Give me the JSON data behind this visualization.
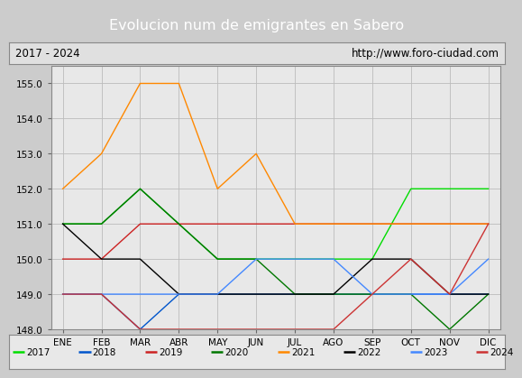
{
  "title": "Evolucion num de emigrantes en Sabero",
  "title_bg": "#4a8fd4",
  "subtitle_left": "2017 - 2024",
  "subtitle_right": "http://www.foro-ciudad.com",
  "months": [
    "ENE",
    "FEB",
    "MAR",
    "ABR",
    "MAY",
    "JUN",
    "JUL",
    "AGO",
    "SEP",
    "OCT",
    "NOV",
    "DIC"
  ],
  "ylim": [
    148.0,
    155.5
  ],
  "yticks": [
    148.0,
    149.0,
    150.0,
    151.0,
    152.0,
    153.0,
    154.0,
    155.0
  ],
  "series": {
    "2017": {
      "color": "#00dd00",
      "data": [
        151,
        151,
        152,
        151,
        150,
        150,
        150,
        150,
        150,
        152,
        152,
        152
      ]
    },
    "2018": {
      "color": "#0055cc",
      "data": [
        149,
        149,
        148,
        149,
        149,
        149,
        149,
        149,
        149,
        149,
        149,
        149
      ]
    },
    "2019": {
      "color": "#cc2222",
      "data": [
        150,
        150,
        151,
        151,
        151,
        151,
        151,
        151,
        151,
        151,
        151,
        151
      ]
    },
    "2020": {
      "color": "#007700",
      "data": [
        151,
        151,
        152,
        151,
        150,
        150,
        149,
        149,
        149,
        149,
        148,
        149
      ]
    },
    "2021": {
      "color": "#ff8800",
      "data": [
        152,
        153,
        155,
        155,
        152,
        153,
        151,
        151,
        151,
        151,
        151,
        151
      ]
    },
    "2022": {
      "color": "#000000",
      "data": [
        151,
        150,
        150,
        149,
        149,
        149,
        149,
        149,
        150,
        150,
        149,
        149
      ]
    },
    "2023": {
      "color": "#4488ff",
      "data": [
        149,
        149,
        149,
        149,
        149,
        150,
        150,
        150,
        149,
        149,
        149,
        150
      ]
    },
    "2024": {
      "color": "#cc3333",
      "data": [
        149,
        149,
        148,
        148,
        148,
        148,
        148,
        148,
        149,
        150,
        149,
        151
      ]
    }
  },
  "legend_order": [
    "2017",
    "2018",
    "2019",
    "2020",
    "2021",
    "2022",
    "2023",
    "2024"
  ],
  "outer_bg": "#cccccc",
  "plot_bg": "#e8e8e8"
}
